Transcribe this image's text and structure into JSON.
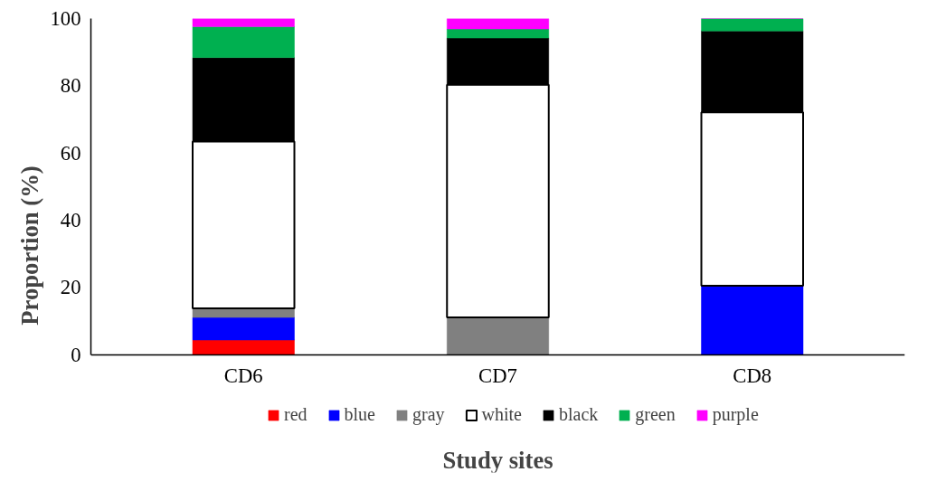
{
  "chart_data": {
    "type": "bar",
    "stacked": true,
    "xlabel": "Study sites",
    "ylabel": "Proportion (%)",
    "categories": [
      "CD6",
      "CD7",
      "CD8"
    ],
    "series": [
      {
        "name": "red",
        "color": "#ff0000",
        "values": [
          4.4,
          0,
          0
        ]
      },
      {
        "name": "blue",
        "color": "#0000ff",
        "values": [
          6.7,
          0,
          20.5
        ]
      },
      {
        "name": "gray",
        "color": "#808080",
        "values": [
          2.7,
          11.1,
          0
        ]
      },
      {
        "name": "white",
        "color": "#ffffff",
        "values": [
          49.6,
          69.2,
          51.6
        ]
      },
      {
        "name": "black",
        "color": "#000000",
        "values": [
          25.0,
          13.9,
          24.2
        ]
      },
      {
        "name": "green",
        "color": "#00b050",
        "values": [
          9.2,
          2.7,
          3.7
        ]
      },
      {
        "name": "purple",
        "color": "#ff00ff",
        "values": [
          2.5,
          3.1,
          0
        ]
      }
    ],
    "ylim": [
      0,
      100
    ],
    "yticks": [
      0,
      20,
      40,
      60,
      80,
      100
    ],
    "grid": false,
    "legend": "bottom"
  }
}
